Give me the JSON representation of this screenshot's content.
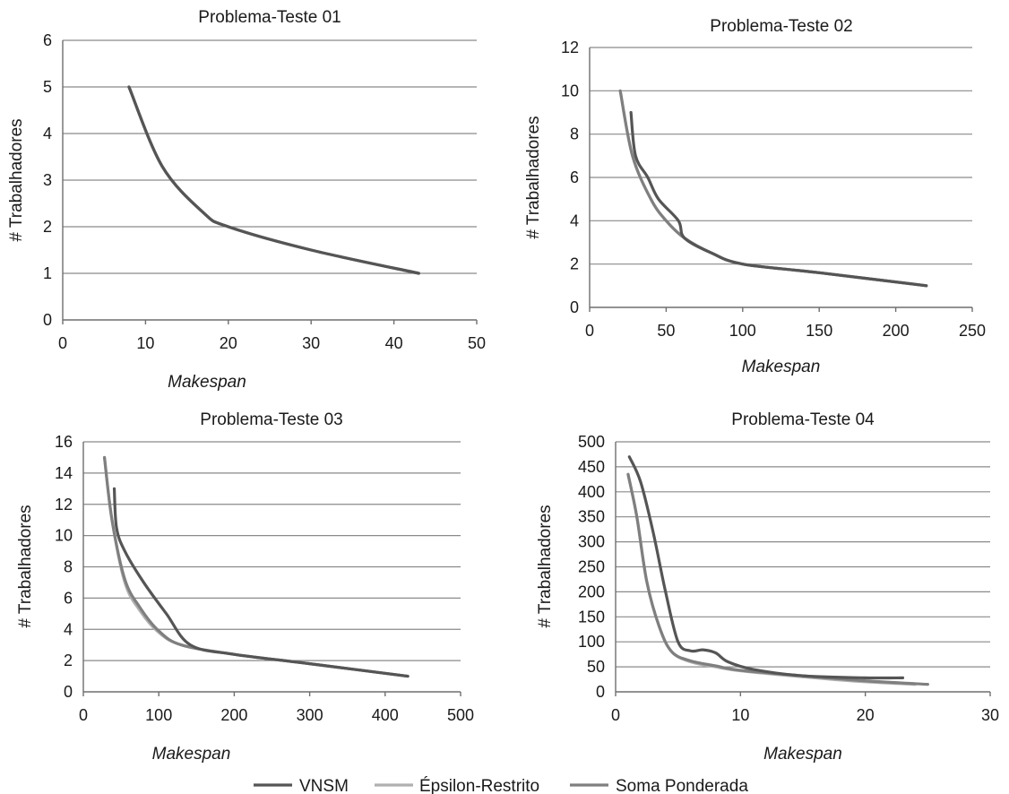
{
  "colors": {
    "VNSM": "#555555",
    "Épsilon-Restrito": "#b0b0b0",
    "Soma Ponderada": "#7f7f7f"
  },
  "legend": {
    "items": [
      {
        "name": "VNSM",
        "color": "#555555"
      },
      {
        "name": "Épsilon-Restrito",
        "color": "#b0b0b0"
      },
      {
        "name": "Soma Ponderada",
        "color": "#7f7f7f"
      }
    ]
  },
  "chart_data": [
    {
      "type": "line",
      "title": "Problema-Teste 01",
      "xlabel": "Makespan",
      "ylabel": "# Trabalhadores",
      "xlim": [
        0,
        50
      ],
      "ylim": [
        0,
        6
      ],
      "xticks": [
        0,
        10,
        20,
        30,
        40,
        50
      ],
      "yticks": [
        0,
        1,
        2,
        3,
        4,
        5,
        6
      ],
      "grid": true,
      "series": [
        {
          "name": "VNSM",
          "x": [
            8,
            12,
            17,
            20,
            30,
            43
          ],
          "y": [
            5,
            3.3,
            2.3,
            2,
            1.5,
            1
          ]
        },
        {
          "name": "Épsilon-Restrito",
          "x": [
            8,
            12,
            17,
            20,
            30,
            43
          ],
          "y": [
            5,
            3.3,
            2.3,
            2,
            1.5,
            1
          ]
        },
        {
          "name": "Soma Ponderada",
          "x": [
            8,
            12,
            17,
            20,
            30,
            43
          ],
          "y": [
            5,
            3.3,
            2.3,
            2,
            1.5,
            1
          ]
        }
      ]
    },
    {
      "type": "line",
      "title": "Problema-Teste 02",
      "xlabel": "Makespan",
      "ylabel": "# Trabalhadores",
      "xlim": [
        0,
        250
      ],
      "ylim": [
        0,
        12
      ],
      "xticks": [
        0,
        50,
        100,
        150,
        200,
        250
      ],
      "yticks": [
        0,
        2,
        4,
        6,
        8,
        10,
        12
      ],
      "grid": true,
      "series": [
        {
          "name": "VNSM",
          "x": [
            27,
            30,
            38,
            45,
            58,
            62,
            80,
            100,
            150,
            220
          ],
          "y": [
            9,
            7,
            6,
            5,
            4,
            3.2,
            2.5,
            2,
            1.6,
            1
          ]
        },
        {
          "name": "Épsilon-Restrito",
          "x": [
            20,
            28,
            40,
            50,
            62,
            80,
            100,
            150,
            220
          ],
          "y": [
            10,
            7,
            5,
            4,
            3.2,
            2.5,
            2,
            1.6,
            1
          ]
        },
        {
          "name": "Soma Ponderada",
          "x": [
            20,
            28,
            40,
            50,
            62,
            80,
            100,
            150,
            220
          ],
          "y": [
            10,
            7,
            5,
            4,
            3.2,
            2.5,
            2,
            1.6,
            1
          ]
        }
      ]
    },
    {
      "type": "line",
      "title": "Problema-Teste 03",
      "xlabel": "Makespan",
      "ylabel": "# Trabalhadores",
      "xlim": [
        0,
        500
      ],
      "ylim": [
        0,
        16
      ],
      "xticks": [
        0,
        100,
        200,
        300,
        400,
        500
      ],
      "yticks": [
        0,
        2,
        4,
        6,
        8,
        10,
        12,
        14,
        16
      ],
      "grid": true,
      "series": [
        {
          "name": "VNSM",
          "x": [
            41,
            44,
            55,
            80,
            110,
            142,
            200,
            300,
            430
          ],
          "y": [
            13,
            10.5,
            9,
            7,
            5,
            3,
            2.4,
            1.8,
            1
          ]
        },
        {
          "name": "Épsilon-Restrito",
          "x": [
            28,
            38,
            55,
            75,
            100,
            130,
            200,
            300,
            430
          ],
          "y": [
            15,
            11,
            7,
            5.2,
            3.8,
            3,
            2.4,
            1.8,
            1
          ]
        },
        {
          "name": "Soma Ponderada",
          "x": [
            28,
            38,
            55,
            75,
            100,
            130,
            200,
            300,
            430
          ],
          "y": [
            15,
            11,
            7.2,
            5.4,
            3.9,
            3,
            2.4,
            1.8,
            1
          ]
        }
      ]
    },
    {
      "type": "line",
      "title": "Problema-Teste 04",
      "xlabel": "Makespan",
      "ylabel": "# Trabalhadores",
      "xlim": [
        0,
        30
      ],
      "ylim": [
        0,
        500
      ],
      "xticks": [
        0,
        10,
        20,
        30
      ],
      "yticks": [
        0,
        50,
        100,
        150,
        200,
        250,
        300,
        350,
        400,
        450,
        500
      ],
      "grid": true,
      "series": [
        {
          "name": "VNSM",
          "x": [
            1.1,
            2,
            3,
            4,
            5,
            6,
            7,
            8,
            9,
            11,
            15,
            20,
            23
          ],
          "y": [
            470,
            420,
            320,
            200,
            100,
            82,
            84,
            78,
            60,
            45,
            32,
            28,
            28
          ]
        },
        {
          "name": "Épsilon-Restrito",
          "x": [
            1,
            1.7,
            2.5,
            3.5,
            4.5,
            6,
            8,
            10,
            15,
            20,
            24
          ],
          "y": [
            435,
            350,
            220,
            130,
            80,
            60,
            50,
            42,
            30,
            20,
            15
          ]
        },
        {
          "name": "Soma Ponderada",
          "x": [
            1,
            1.7,
            2.5,
            3.5,
            4.5,
            6,
            8,
            10,
            15,
            20,
            25
          ],
          "y": [
            435,
            350,
            220,
            130,
            80,
            62,
            52,
            43,
            32,
            22,
            15
          ]
        }
      ]
    }
  ]
}
